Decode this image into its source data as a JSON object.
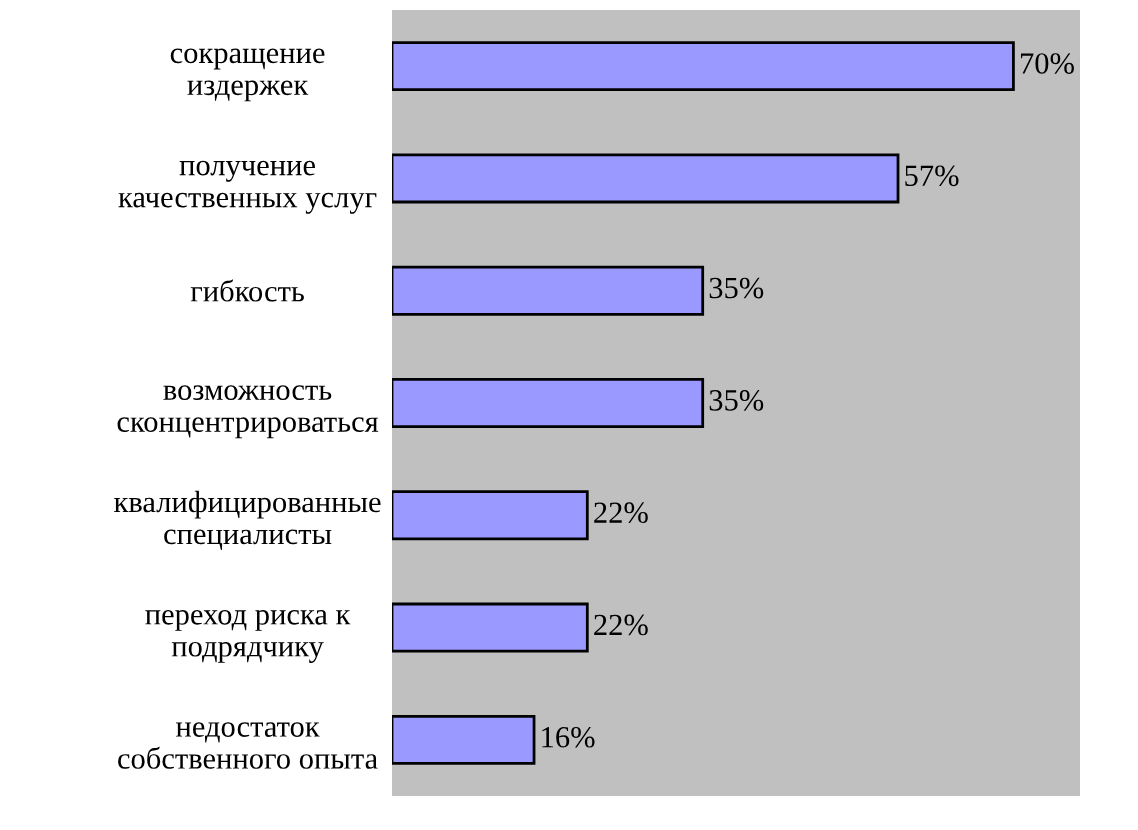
{
  "chart_data": {
    "type": "bar",
    "orientation": "horizontal",
    "categories": [
      "сокращение\nиздержек",
      "получение\nкачественных услуг",
      "гибкость",
      "возможность\nсконцентрироваться",
      "квалифицированные\nспециалисты",
      "переход риска к\nподрядчику",
      "недостаток\nсобственного опыта"
    ],
    "values": [
      70,
      57,
      35,
      35,
      22,
      22,
      16
    ],
    "value_labels": [
      "70%",
      "57%",
      "35%",
      "35%",
      "22%",
      "22%",
      "16%"
    ],
    "color": "#9999ff",
    "xlim": [
      0,
      77.5
    ],
    "grid": false,
    "legend": false
  }
}
